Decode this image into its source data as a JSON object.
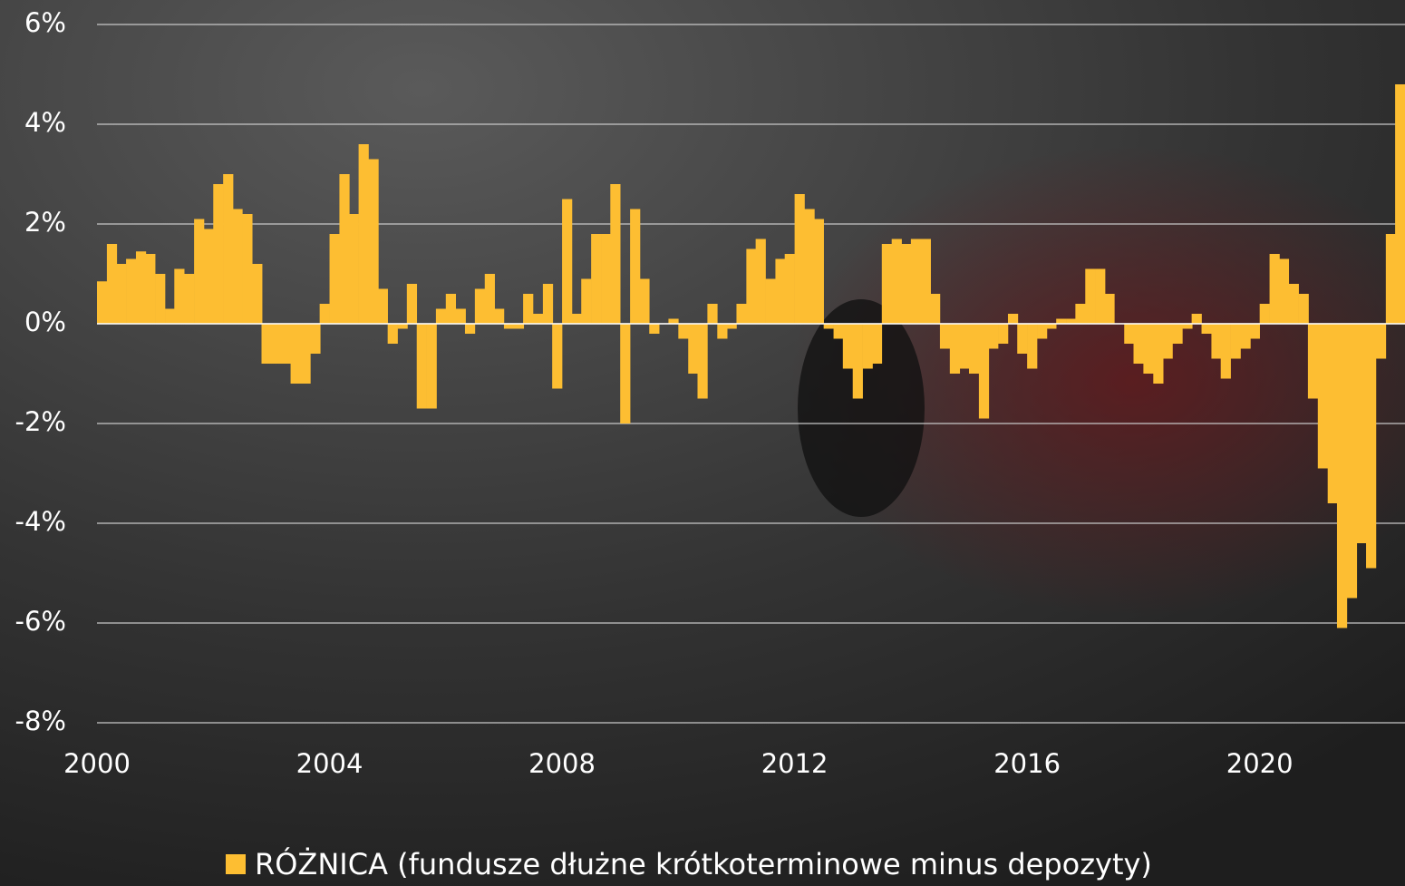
{
  "chart_data": {
    "type": "bar",
    "x": [
      2000,
      2000.17,
      2000.33,
      2000.5,
      2000.67,
      2000.83,
      2001,
      2001.17,
      2001.33,
      2001.5,
      2001.67,
      2001.83,
      2002,
      2002.17,
      2002.33,
      2002.5,
      2002.67,
      2002.83,
      2003,
      2003.17,
      2003.33,
      2003.5,
      2003.67,
      2003.83,
      2004,
      2004.17,
      2004.33,
      2004.5,
      2004.67,
      2004.83,
      2005,
      2005.17,
      2005.33,
      2005.5,
      2005.67,
      2005.83,
      2006,
      2006.17,
      2006.33,
      2006.5,
      2006.67,
      2006.83,
      2007,
      2007.17,
      2007.33,
      2007.5,
      2007.67,
      2007.83,
      2008,
      2008.17,
      2008.33,
      2008.5,
      2008.67,
      2008.83,
      2009,
      2009.17,
      2009.33,
      2009.5,
      2009.67,
      2009.83,
      2010,
      2010.17,
      2010.33,
      2010.5,
      2010.67,
      2010.83,
      2011,
      2011.17,
      2011.33,
      2011.5,
      2011.67,
      2011.83,
      2012,
      2012.17,
      2012.33,
      2012.5,
      2012.67,
      2012.83,
      2013,
      2013.17,
      2013.33,
      2013.5,
      2013.67,
      2013.83,
      2014,
      2014.17,
      2014.33,
      2014.5,
      2014.67,
      2014.83,
      2015,
      2015.17,
      2015.33,
      2015.5,
      2015.67,
      2015.83,
      2016,
      2016.17,
      2016.33,
      2016.5,
      2016.67,
      2016.83,
      2017,
      2017.17,
      2017.33,
      2017.5,
      2017.67,
      2017.83,
      2018,
      2018.17,
      2018.33,
      2018.5,
      2018.67,
      2018.83,
      2019,
      2019.17,
      2019.33,
      2019.5,
      2019.67,
      2019.83,
      2020,
      2020.17,
      2020.33,
      2020.5,
      2020.67,
      2020.83,
      2021,
      2021.17,
      2021.33,
      2021.5,
      2021.67,
      2021.83,
      2022,
      2022.17,
      2022.33
    ],
    "series": [
      {
        "name": "RÓŻNICA (fundusze dłużne krótkoterminowe minus depozyty)",
        "color": "#fdbe32",
        "values": [
          0.85,
          1.6,
          1.2,
          1.3,
          1.45,
          1.4,
          1.0,
          0.3,
          1.1,
          1.0,
          2.1,
          1.9,
          2.8,
          3.0,
          2.3,
          2.2,
          1.2,
          -0.8,
          -0.8,
          -0.8,
          -1.2,
          -1.2,
          -0.6,
          0.4,
          1.8,
          3.0,
          2.2,
          3.6,
          3.3,
          0.7,
          -0.4,
          -0.1,
          0.8,
          -1.7,
          -1.7,
          0.3,
          0.6,
          0.3,
          -0.2,
          0.7,
          1.0,
          0.3,
          -0.1,
          -0.1,
          0.6,
          0.2,
          0.8,
          -1.3,
          2.5,
          0.2,
          0.9,
          1.8,
          1.8,
          2.8,
          -2.0,
          2.3,
          0.9,
          -0.2,
          0.0,
          0.1,
          -0.3,
          -1.0,
          -1.5,
          0.4,
          -0.3,
          -0.1,
          0.4,
          1.5,
          1.7,
          0.9,
          1.3,
          1.4,
          2.6,
          2.3,
          2.1,
          -0.1,
          -0.3,
          -0.9,
          -1.5,
          -0.9,
          -0.8,
          1.6,
          1.7,
          1.6,
          1.7,
          1.7,
          0.6,
          -0.5,
          -1.0,
          -0.9,
          -1.0,
          -1.9,
          -0.5,
          -0.4,
          0.2,
          -0.6,
          -0.9,
          -0.3,
          -0.1,
          0.1,
          0.1,
          0.4,
          1.1,
          1.1,
          0.6,
          0.0,
          -0.4,
          -0.8,
          -1.0,
          -1.2,
          -0.7,
          -0.4,
          -0.1,
          0.2,
          -0.2,
          -0.7,
          -1.1,
          -0.7,
          -0.5,
          -0.3,
          0.4,
          1.4,
          1.3,
          0.8,
          0.6,
          -1.5,
          -2.9,
          -3.6,
          -6.1,
          -5.5,
          -4.4,
          -4.9,
          -0.7,
          1.8,
          4.8
        ]
      }
    ],
    "xlim": [
      2000,
      2022.5
    ],
    "xticks": [
      2000,
      2004,
      2008,
      2012,
      2016,
      2020
    ],
    "ylim": [
      -8,
      6
    ],
    "yticks": [
      {
        "value": -8,
        "label": "-8%"
      },
      {
        "value": -6,
        "label": "-6%"
      },
      {
        "value": -4,
        "label": "-4%"
      },
      {
        "value": -2,
        "label": "-2%"
      },
      {
        "value": 0,
        "label": "0%"
      },
      {
        "value": 2,
        "label": "2%"
      },
      {
        "value": 4,
        "label": "4%"
      },
      {
        "value": 6,
        "label": "6%"
      }
    ],
    "grid": true,
    "legend": "bottom"
  }
}
